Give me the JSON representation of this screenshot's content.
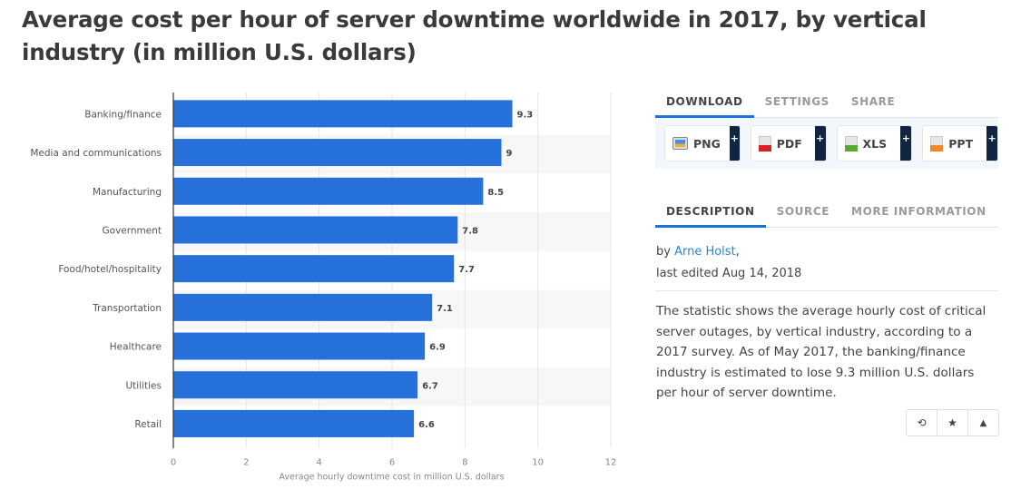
{
  "title": "Average cost per hour of server downtime worldwide in 2017, by vertical industry (in million U.S. dollars)",
  "chart_data": {
    "type": "bar",
    "orientation": "horizontal",
    "title": "Average cost per hour of server downtime worldwide in 2017, by vertical industry (in million U.S. dollars)",
    "categories": [
      "Banking/finance",
      "Media and communications",
      "Manufacturing",
      "Government",
      "Food/hotel/hospitality",
      "Transportation",
      "Healthcare",
      "Utilities",
      "Retail"
    ],
    "values": [
      9.3,
      9,
      8.5,
      7.8,
      7.7,
      7.1,
      6.9,
      6.7,
      6.6
    ],
    "value_labels": [
      "9.3",
      "9",
      "8.5",
      "7.8",
      "7.7",
      "7.1",
      "6.9",
      "6.7",
      "6.6"
    ],
    "xlabel": "Average hourly downtime cost in million U.S. dollars",
    "ylabel": "",
    "xlim": [
      0,
      12
    ],
    "xticks": [
      0,
      2,
      4,
      6,
      8,
      10,
      12
    ],
    "grid": true,
    "legend": "none",
    "bar_color": "#2670d9"
  },
  "download_tabs": [
    {
      "label": "DOWNLOAD",
      "active": true
    },
    {
      "label": "SETTINGS",
      "active": false
    },
    {
      "label": "SHARE",
      "active": false
    }
  ],
  "downloads": [
    {
      "label": "PNG",
      "icon": "png-file-icon",
      "plus": "+"
    },
    {
      "label": "PDF",
      "icon": "pdf-file-icon",
      "color": "#d6202a",
      "plus": "+"
    },
    {
      "label": "XLS",
      "icon": "xls-file-icon",
      "color": "#5aa832",
      "plus": "+"
    },
    {
      "label": "PPT",
      "icon": "ppt-file-icon",
      "color": "#ee8a2a",
      "plus": "+"
    }
  ],
  "info_tabs": [
    {
      "label": "DESCRIPTION",
      "active": true
    },
    {
      "label": "SOURCE",
      "active": false
    },
    {
      "label": "MORE INFORMATION",
      "active": false
    }
  ],
  "author": {
    "prefix": "by ",
    "name": "Arne Holst",
    "suffix": ",",
    "edited": "last edited Aug 14, 2018"
  },
  "description": "The statistic shows the average hourly cost of critical server outages, by vertical industry, according to a 2017 survey. As of May 2017, the banking/finance industry is estimated to lose 9.3 million U.S. dollars per hour of server downtime.",
  "actions": [
    {
      "icon": "history-icon",
      "glyph": "⟲"
    },
    {
      "icon": "star-icon",
      "glyph": "★"
    },
    {
      "icon": "bell-icon",
      "glyph": "🔔"
    }
  ]
}
